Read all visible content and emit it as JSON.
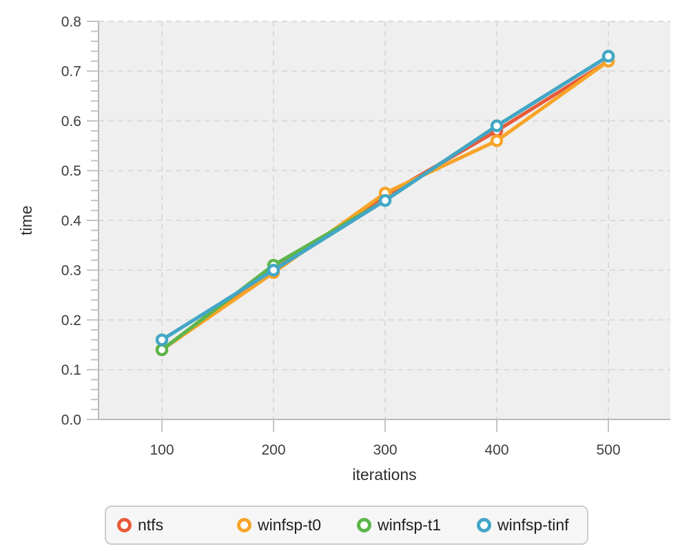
{
  "chart_data": {
    "type": "line",
    "title": "",
    "xlabel": "iterations",
    "ylabel": "time",
    "x": [
      100,
      200,
      300,
      400,
      500
    ],
    "xticks": [
      100,
      200,
      300,
      400,
      500
    ],
    "yticks": [
      "0.0",
      "0.1",
      "0.2",
      "0.3",
      "0.4",
      "0.5",
      "0.6",
      "0.7",
      "0.8"
    ],
    "y_minor_step": 0.02,
    "xlim": [
      43,
      557
    ],
    "ylim": [
      0.0,
      0.8
    ],
    "grid": true,
    "grid_style": "dashed",
    "legend_position": "bottom",
    "series": [
      {
        "name": "ntfs",
        "color": "#e85b3a",
        "values": [
          0.14,
          0.3,
          0.45,
          0.58,
          0.72
        ]
      },
      {
        "name": "winfsp-t0",
        "color": "#f7a428",
        "values": [
          0.14,
          0.295,
          0.455,
          0.56,
          0.72
        ]
      },
      {
        "name": "winfsp-t1",
        "color": "#5cb54a",
        "values": [
          0.14,
          0.31,
          0.44,
          0.59,
          0.73
        ]
      },
      {
        "name": "winfsp-tinf",
        "color": "#43a6c6",
        "values": [
          0.16,
          0.3,
          0.44,
          0.59,
          0.73
        ]
      }
    ],
    "style": {
      "plot_background": "#efefef",
      "page_background": "#ffffff",
      "grid_color": "#d8d8d8",
      "axis_color": "#b9b9b9",
      "tick_color": "#c3c3c3",
      "tick_label_color": "#3d3d3d",
      "marker_fill": "#ffffff"
    }
  }
}
